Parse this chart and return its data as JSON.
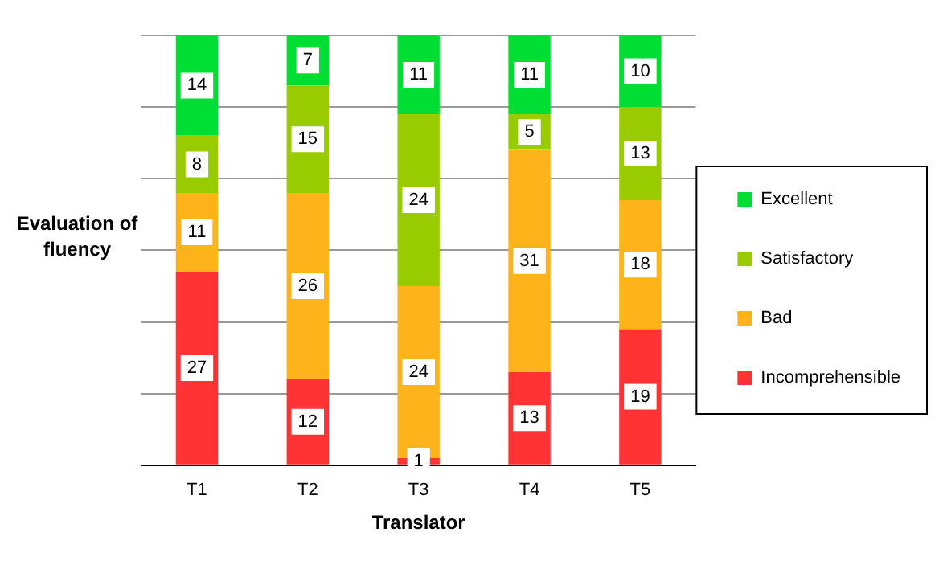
{
  "chart_data": {
    "type": "bar",
    "stacked": true,
    "xlabel": "Translator",
    "ylabel": "Evaluation of fluency",
    "categories": [
      "T1",
      "T2",
      "T3",
      "T4",
      "T5"
    ],
    "series": [
      {
        "name": "Incomprehensible",
        "color": "#ff3333",
        "values": [
          27,
          12,
          1,
          13,
          19
        ]
      },
      {
        "name": "Bad",
        "color": "#ffb31a",
        "values": [
          11,
          26,
          24,
          31,
          18
        ]
      },
      {
        "name": "Satisfactory",
        "color": "#99cc00",
        "values": [
          8,
          15,
          24,
          5,
          13
        ]
      },
      {
        "name": "Excellent",
        "color": "#00dd33",
        "values": [
          14,
          7,
          11,
          11,
          10
        ]
      }
    ],
    "ylim": [
      0,
      60
    ],
    "yticks": [
      0,
      10,
      20,
      30,
      40,
      50,
      60
    ],
    "tick_labels": "x",
    "grid": "y",
    "legend": "right",
    "data_labels": true
  }
}
